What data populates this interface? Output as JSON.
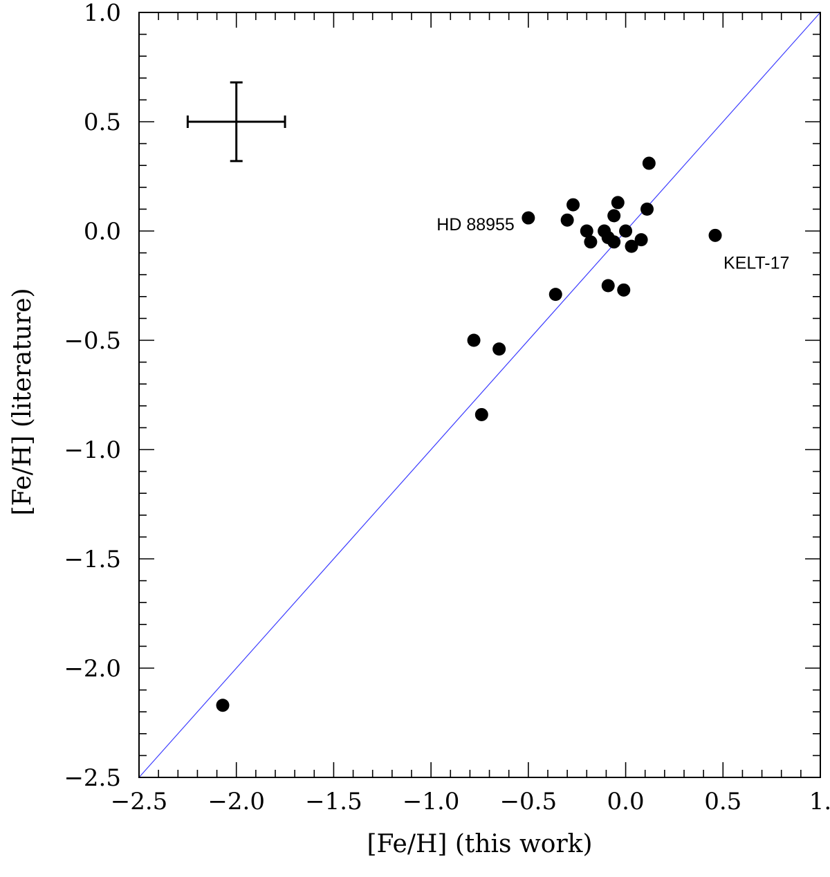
{
  "chart_data": {
    "type": "scatter",
    "title": "",
    "xlabel": "[Fe/H] (this work)",
    "ylabel": "[Fe/H] (literature)",
    "xlim": [
      -2.5,
      1.0
    ],
    "ylim": [
      -2.5,
      1.0
    ],
    "x_ticks": [
      -2.5,
      -2.0,
      -1.5,
      -1.0,
      -0.5,
      0.0,
      0.5,
      1.0
    ],
    "x_tick_labels": [
      "−2.5",
      "−2.0",
      "−1.5",
      "−1.0",
      "−0.5",
      "0.0",
      "0.5",
      "1."
    ],
    "y_ticks": [
      -2.5,
      -2.0,
      -1.5,
      -1.0,
      -0.5,
      0.0,
      0.5,
      1.0
    ],
    "y_tick_labels": [
      "−2.5",
      "−2.0",
      "−1.5",
      "−1.0",
      "−0.5",
      "0.0",
      "0.5",
      "1.0"
    ],
    "grid": false,
    "points": [
      {
        "x": -2.07,
        "y": -2.17
      },
      {
        "x": -0.78,
        "y": -0.5
      },
      {
        "x": -0.65,
        "y": -0.54
      },
      {
        "x": -0.74,
        "y": -0.84
      },
      {
        "x": -0.36,
        "y": -0.29
      },
      {
        "x": -0.5,
        "y": 0.06
      },
      {
        "x": -0.27,
        "y": 0.12
      },
      {
        "x": -0.3,
        "y": 0.05
      },
      {
        "x": -0.2,
        "y": 0.0
      },
      {
        "x": -0.18,
        "y": -0.05
      },
      {
        "x": -0.11,
        "y": 0.0
      },
      {
        "x": -0.09,
        "y": -0.03
      },
      {
        "x": -0.06,
        "y": -0.05
      },
      {
        "x": -0.06,
        "y": 0.07
      },
      {
        "x": -0.04,
        "y": 0.13
      },
      {
        "x": -0.09,
        "y": -0.25
      },
      {
        "x": -0.01,
        "y": -0.27
      },
      {
        "x": 0.0,
        "y": 0.0
      },
      {
        "x": 0.03,
        "y": -0.07
      },
      {
        "x": 0.08,
        "y": -0.04
      },
      {
        "x": 0.11,
        "y": 0.1
      },
      {
        "x": 0.12,
        "y": 0.31
      },
      {
        "x": 0.46,
        "y": -0.02
      }
    ],
    "reference_line": {
      "type": "one-to-one",
      "color": "#3b3bff",
      "from": [
        -2.5,
        -2.5
      ],
      "to": [
        1.0,
        1.0
      ]
    },
    "error_bar": {
      "x": -2.0,
      "y": 0.5,
      "xerr": 0.25,
      "yerr": 0.18
    },
    "annotations": [
      {
        "text": "HD 88955",
        "x": -0.5,
        "y": 0.06,
        "position": "left"
      },
      {
        "text": "KELT-17",
        "x": 0.46,
        "y": -0.02,
        "position": "below-right"
      }
    ],
    "marker_color": "#000000"
  }
}
